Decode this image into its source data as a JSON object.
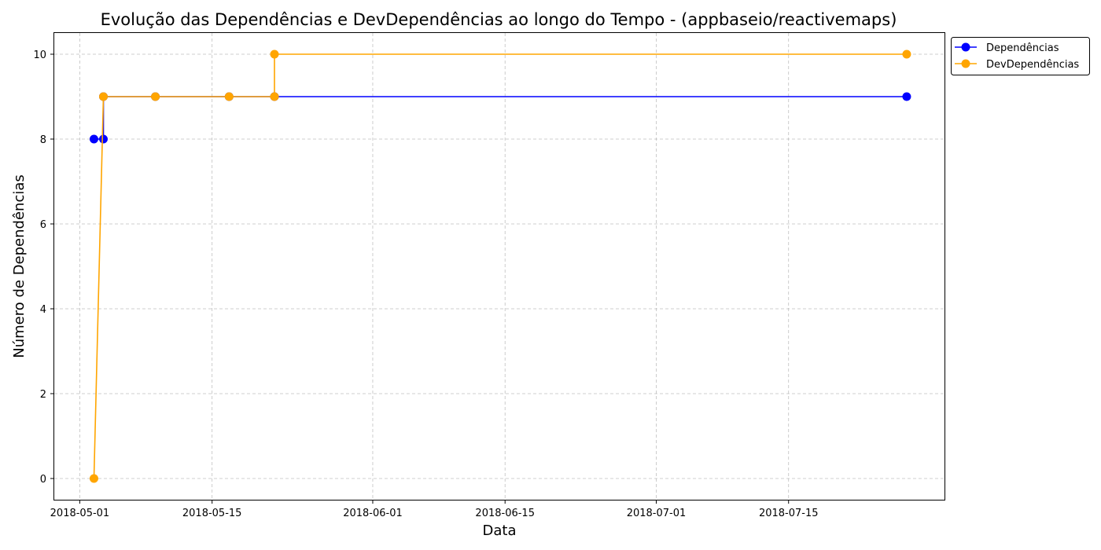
{
  "chart_data": {
    "type": "line",
    "title": "Evolução das Dependências e DevDependências ao longo do Tempo - (appbaseio/reactivemaps)",
    "xlabel": "Data",
    "ylabel": "Número de Dependências",
    "x_tick_labels": [
      "2018-05-01",
      "2018-05-15",
      "2018-06-01",
      "2018-06-15",
      "2018-07-01",
      "2018-07-15"
    ],
    "y_ticks": [
      0,
      2,
      4,
      6,
      8,
      10
    ],
    "ylim": [
      -0.5,
      10.5
    ],
    "xlim_days_from_2018_05_01": [
      -2.7,
      91.5
    ],
    "grid": true,
    "legend_position": "outside-top-right",
    "series": [
      {
        "name": "Dependências",
        "color": "#0000ff",
        "x": [
          1.5,
          2.5,
          2.5,
          8.0,
          15.8,
          20.6,
          87.5
        ],
        "dates": [
          "2018-05-02",
          "2018-05-03",
          "2018-05-03",
          "2018-05-09",
          "2018-05-16",
          "2018-05-21",
          "2018-07-28"
        ],
        "values": [
          8,
          8,
          9,
          9,
          9,
          9,
          9
        ]
      },
      {
        "name": "DevDependências",
        "color": "#ffa500",
        "x": [
          1.5,
          2.5,
          8.0,
          15.8,
          20.6,
          20.6,
          87.5
        ],
        "dates": [
          "2018-05-02",
          "2018-05-03",
          "2018-05-09",
          "2018-05-16",
          "2018-05-21",
          "2018-05-21",
          "2018-07-28"
        ],
        "values": [
          0,
          9,
          9,
          9,
          9,
          10,
          10
        ]
      }
    ]
  }
}
